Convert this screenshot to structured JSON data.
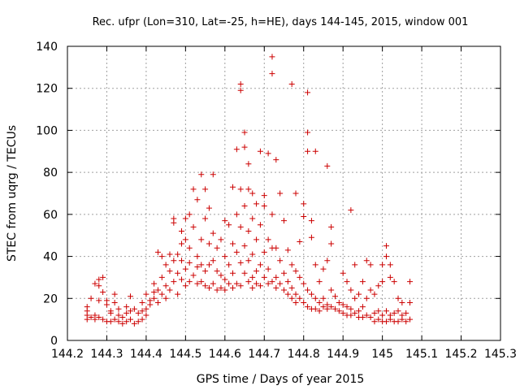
{
  "chart_data": {
    "type": "scatter",
    "title": "Rec. ufpr (Lon=310, Lat=-25, h=HE), days 144-145, 2015, window 001",
    "xlabel": "GPS time / Days of year 2015",
    "ylabel": "STEC from uqrg / TECUs",
    "xlim": [
      144.2,
      145.3
    ],
    "ylim": [
      0,
      140
    ],
    "xticks": [
      "144.2",
      "144.3",
      "144.4",
      "144.5",
      "144.6",
      "144.7",
      "144.8",
      "144.9",
      "145",
      "145.1",
      "145.2",
      "145.3"
    ],
    "yticks": [
      "0",
      "20",
      "40",
      "60",
      "80",
      "100",
      "120",
      "140"
    ],
    "grid": true,
    "legend": "none",
    "marker": "+",
    "color": "#cc0000",
    "series": [
      {
        "points": [
          [
            144.25,
            10
          ],
          [
            144.25,
            12
          ],
          [
            144.25,
            14
          ],
          [
            144.25,
            16
          ],
          [
            144.26,
            11
          ],
          [
            144.26,
            20
          ],
          [
            144.27,
            27
          ],
          [
            144.27,
            12
          ],
          [
            144.27,
            10
          ],
          [
            144.28,
            29
          ],
          [
            144.28,
            26
          ],
          [
            144.28,
            11
          ],
          [
            144.28,
            19
          ],
          [
            144.29,
            30
          ],
          [
            144.29,
            23
          ],
          [
            144.29,
            10
          ],
          [
            144.3,
            17
          ],
          [
            144.3,
            19
          ],
          [
            144.3,
            9
          ],
          [
            144.31,
            14
          ],
          [
            144.31,
            13
          ],
          [
            144.31,
            9
          ],
          [
            144.32,
            22
          ],
          [
            144.32,
            18
          ],
          [
            144.32,
            10
          ],
          [
            144.33,
            12
          ],
          [
            144.33,
            9
          ],
          [
            144.33,
            15
          ],
          [
            144.34,
            11
          ],
          [
            144.34,
            8
          ],
          [
            144.35,
            13
          ],
          [
            144.35,
            9
          ],
          [
            144.35,
            16
          ],
          [
            144.36,
            21
          ],
          [
            144.36,
            10
          ],
          [
            144.36,
            14
          ],
          [
            144.37,
            8
          ],
          [
            144.37,
            15
          ],
          [
            144.38,
            9
          ],
          [
            144.38,
            13
          ],
          [
            144.39,
            14
          ],
          [
            144.39,
            10
          ],
          [
            144.39,
            18
          ],
          [
            144.4,
            22
          ],
          [
            144.4,
            12
          ],
          [
            144.4,
            15
          ],
          [
            144.41,
            17
          ],
          [
            144.41,
            19
          ],
          [
            144.42,
            20
          ],
          [
            144.42,
            23
          ],
          [
            144.42,
            27
          ],
          [
            144.43,
            42
          ],
          [
            144.43,
            18
          ],
          [
            144.43,
            24
          ],
          [
            144.44,
            40
          ],
          [
            144.44,
            22
          ],
          [
            144.44,
            30
          ],
          [
            144.45,
            36
          ],
          [
            144.45,
            20
          ],
          [
            144.45,
            26
          ],
          [
            144.46,
            41
          ],
          [
            144.46,
            24
          ],
          [
            144.46,
            33
          ],
          [
            144.47,
            58
          ],
          [
            144.47,
            56
          ],
          [
            144.47,
            28
          ],
          [
            144.47,
            38
          ],
          [
            144.48,
            22
          ],
          [
            144.48,
            32
          ],
          [
            144.48,
            41
          ],
          [
            144.49,
            46
          ],
          [
            144.49,
            52
          ],
          [
            144.49,
            29
          ],
          [
            144.49,
            38
          ],
          [
            144.5,
            48
          ],
          [
            144.5,
            58
          ],
          [
            144.5,
            26
          ],
          [
            144.5,
            34
          ],
          [
            144.51,
            60
          ],
          [
            144.51,
            44
          ],
          [
            144.51,
            28
          ],
          [
            144.51,
            37
          ],
          [
            144.52,
            72
          ],
          [
            144.52,
            54
          ],
          [
            144.52,
            31
          ],
          [
            144.53,
            67
          ],
          [
            144.53,
            40
          ],
          [
            144.53,
            27
          ],
          [
            144.53,
            35
          ],
          [
            144.54,
            79
          ],
          [
            144.54,
            48
          ],
          [
            144.54,
            28
          ],
          [
            144.54,
            36
          ],
          [
            144.55,
            72
          ],
          [
            144.55,
            58
          ],
          [
            144.55,
            33
          ],
          [
            144.55,
            26
          ],
          [
            144.56,
            63
          ],
          [
            144.56,
            46
          ],
          [
            144.56,
            36
          ],
          [
            144.56,
            25
          ],
          [
            144.57,
            79
          ],
          [
            144.57,
            51
          ],
          [
            144.57,
            38
          ],
          [
            144.57,
            27
          ],
          [
            144.58,
            44
          ],
          [
            144.58,
            33
          ],
          [
            144.58,
            24
          ],
          [
            144.59,
            48
          ],
          [
            144.59,
            31
          ],
          [
            144.59,
            25
          ],
          [
            144.6,
            57
          ],
          [
            144.6,
            40
          ],
          [
            144.6,
            29
          ],
          [
            144.6,
            24
          ],
          [
            144.61,
            55
          ],
          [
            144.61,
            36
          ],
          [
            144.61,
            27
          ],
          [
            144.62,
            73
          ],
          [
            144.62,
            46
          ],
          [
            144.62,
            32
          ],
          [
            144.62,
            25
          ],
          [
            144.63,
            91
          ],
          [
            144.63,
            60
          ],
          [
            144.63,
            42
          ],
          [
            144.63,
            27
          ],
          [
            144.64,
            122
          ],
          [
            144.64,
            119
          ],
          [
            144.64,
            72
          ],
          [
            144.64,
            54
          ],
          [
            144.64,
            37
          ],
          [
            144.64,
            26
          ],
          [
            144.65,
            99
          ],
          [
            144.65,
            92
          ],
          [
            144.65,
            64
          ],
          [
            144.65,
            45
          ],
          [
            144.65,
            32
          ],
          [
            144.66,
            84
          ],
          [
            144.66,
            72
          ],
          [
            144.66,
            52
          ],
          [
            144.66,
            38
          ],
          [
            144.66,
            28
          ],
          [
            144.67,
            70
          ],
          [
            144.67,
            58
          ],
          [
            144.67,
            41
          ],
          [
            144.67,
            30
          ],
          [
            144.67,
            25
          ],
          [
            144.68,
            65
          ],
          [
            144.68,
            48
          ],
          [
            144.68,
            33
          ],
          [
            144.68,
            27
          ],
          [
            144.69,
            90
          ],
          [
            144.69,
            55
          ],
          [
            144.69,
            36
          ],
          [
            144.69,
            26
          ],
          [
            144.7,
            69
          ],
          [
            144.7,
            64
          ],
          [
            144.7,
            42
          ],
          [
            144.7,
            30
          ],
          [
            144.71,
            89
          ],
          [
            144.71,
            48
          ],
          [
            144.71,
            34
          ],
          [
            144.71,
            27
          ],
          [
            144.72,
            135
          ],
          [
            144.72,
            127
          ],
          [
            144.72,
            60
          ],
          [
            144.72,
            44
          ],
          [
            144.72,
            28
          ],
          [
            144.73,
            86
          ],
          [
            144.73,
            44
          ],
          [
            144.73,
            30
          ],
          [
            144.73,
            25
          ],
          [
            144.74,
            70
          ],
          [
            144.74,
            38
          ],
          [
            144.74,
            27
          ],
          [
            144.75,
            57
          ],
          [
            144.75,
            32
          ],
          [
            144.75,
            24
          ],
          [
            144.76,
            43
          ],
          [
            144.76,
            28
          ],
          [
            144.76,
            22
          ],
          [
            144.77,
            122
          ],
          [
            144.77,
            36
          ],
          [
            144.77,
            25
          ],
          [
            144.77,
            20
          ],
          [
            144.78,
            70
          ],
          [
            144.78,
            33
          ],
          [
            144.78,
            22
          ],
          [
            144.78,
            18
          ],
          [
            144.79,
            47
          ],
          [
            144.79,
            30
          ],
          [
            144.79,
            20
          ],
          [
            144.8,
            65
          ],
          [
            144.8,
            59
          ],
          [
            144.8,
            27
          ],
          [
            144.8,
            18
          ],
          [
            144.81,
            118
          ],
          [
            144.81,
            99
          ],
          [
            144.81,
            90
          ],
          [
            144.81,
            24
          ],
          [
            144.81,
            16
          ],
          [
            144.82,
            57
          ],
          [
            144.82,
            49
          ],
          [
            144.82,
            22
          ],
          [
            144.82,
            15
          ],
          [
            144.83,
            90
          ],
          [
            144.83,
            36
          ],
          [
            144.83,
            20
          ],
          [
            144.83,
            15
          ],
          [
            144.84,
            28
          ],
          [
            144.84,
            18
          ],
          [
            144.84,
            14
          ],
          [
            144.85,
            34
          ],
          [
            144.85,
            20
          ],
          [
            144.85,
            16
          ],
          [
            144.86,
            83
          ],
          [
            144.86,
            38
          ],
          [
            144.86,
            17
          ],
          [
            144.86,
            15
          ],
          [
            144.87,
            54
          ],
          [
            144.87,
            46
          ],
          [
            144.87,
            24
          ],
          [
            144.87,
            16
          ],
          [
            144.88,
            21
          ],
          [
            144.88,
            15
          ],
          [
            144.89,
            18
          ],
          [
            144.89,
            14
          ],
          [
            144.9,
            32
          ],
          [
            144.9,
            17
          ],
          [
            144.9,
            13
          ],
          [
            144.91,
            28
          ],
          [
            144.91,
            16
          ],
          [
            144.91,
            12
          ],
          [
            144.92,
            62
          ],
          [
            144.92,
            24
          ],
          [
            144.92,
            15
          ],
          [
            144.92,
            12
          ],
          [
            144.93,
            36
          ],
          [
            144.93,
            20
          ],
          [
            144.93,
            13
          ],
          [
            144.94,
            22
          ],
          [
            144.94,
            14
          ],
          [
            144.94,
            11
          ],
          [
            144.95,
            28
          ],
          [
            144.95,
            16
          ],
          [
            144.95,
            11
          ],
          [
            144.96,
            38
          ],
          [
            144.96,
            20
          ],
          [
            144.96,
            12
          ],
          [
            144.97,
            36
          ],
          [
            144.97,
            24
          ],
          [
            144.97,
            11
          ],
          [
            144.98,
            22
          ],
          [
            144.98,
            13
          ],
          [
            144.98,
            9
          ],
          [
            144.99,
            26
          ],
          [
            144.99,
            14
          ],
          [
            144.99,
            10
          ],
          [
            145,
            36
          ],
          [
            145,
            28
          ],
          [
            145,
            12
          ],
          [
            145,
            9
          ],
          [
            145.01,
            45
          ],
          [
            145.01,
            40
          ],
          [
            145.01,
            14
          ],
          [
            145.01,
            9
          ],
          [
            145.02,
            36
          ],
          [
            145.02,
            30
          ],
          [
            145.02,
            12
          ],
          [
            145.02,
            10
          ],
          [
            145.03,
            28
          ],
          [
            145.03,
            13
          ],
          [
            145.03,
            9
          ],
          [
            145.04,
            20
          ],
          [
            145.04,
            14
          ],
          [
            145.04,
            9
          ],
          [
            145.05,
            18
          ],
          [
            145.05,
            12
          ],
          [
            145.05,
            10
          ],
          [
            145.06,
            13
          ],
          [
            145.06,
            9
          ],
          [
            145.07,
            28
          ],
          [
            145.07,
            18
          ],
          [
            145.07,
            10
          ]
        ]
      }
    ]
  }
}
